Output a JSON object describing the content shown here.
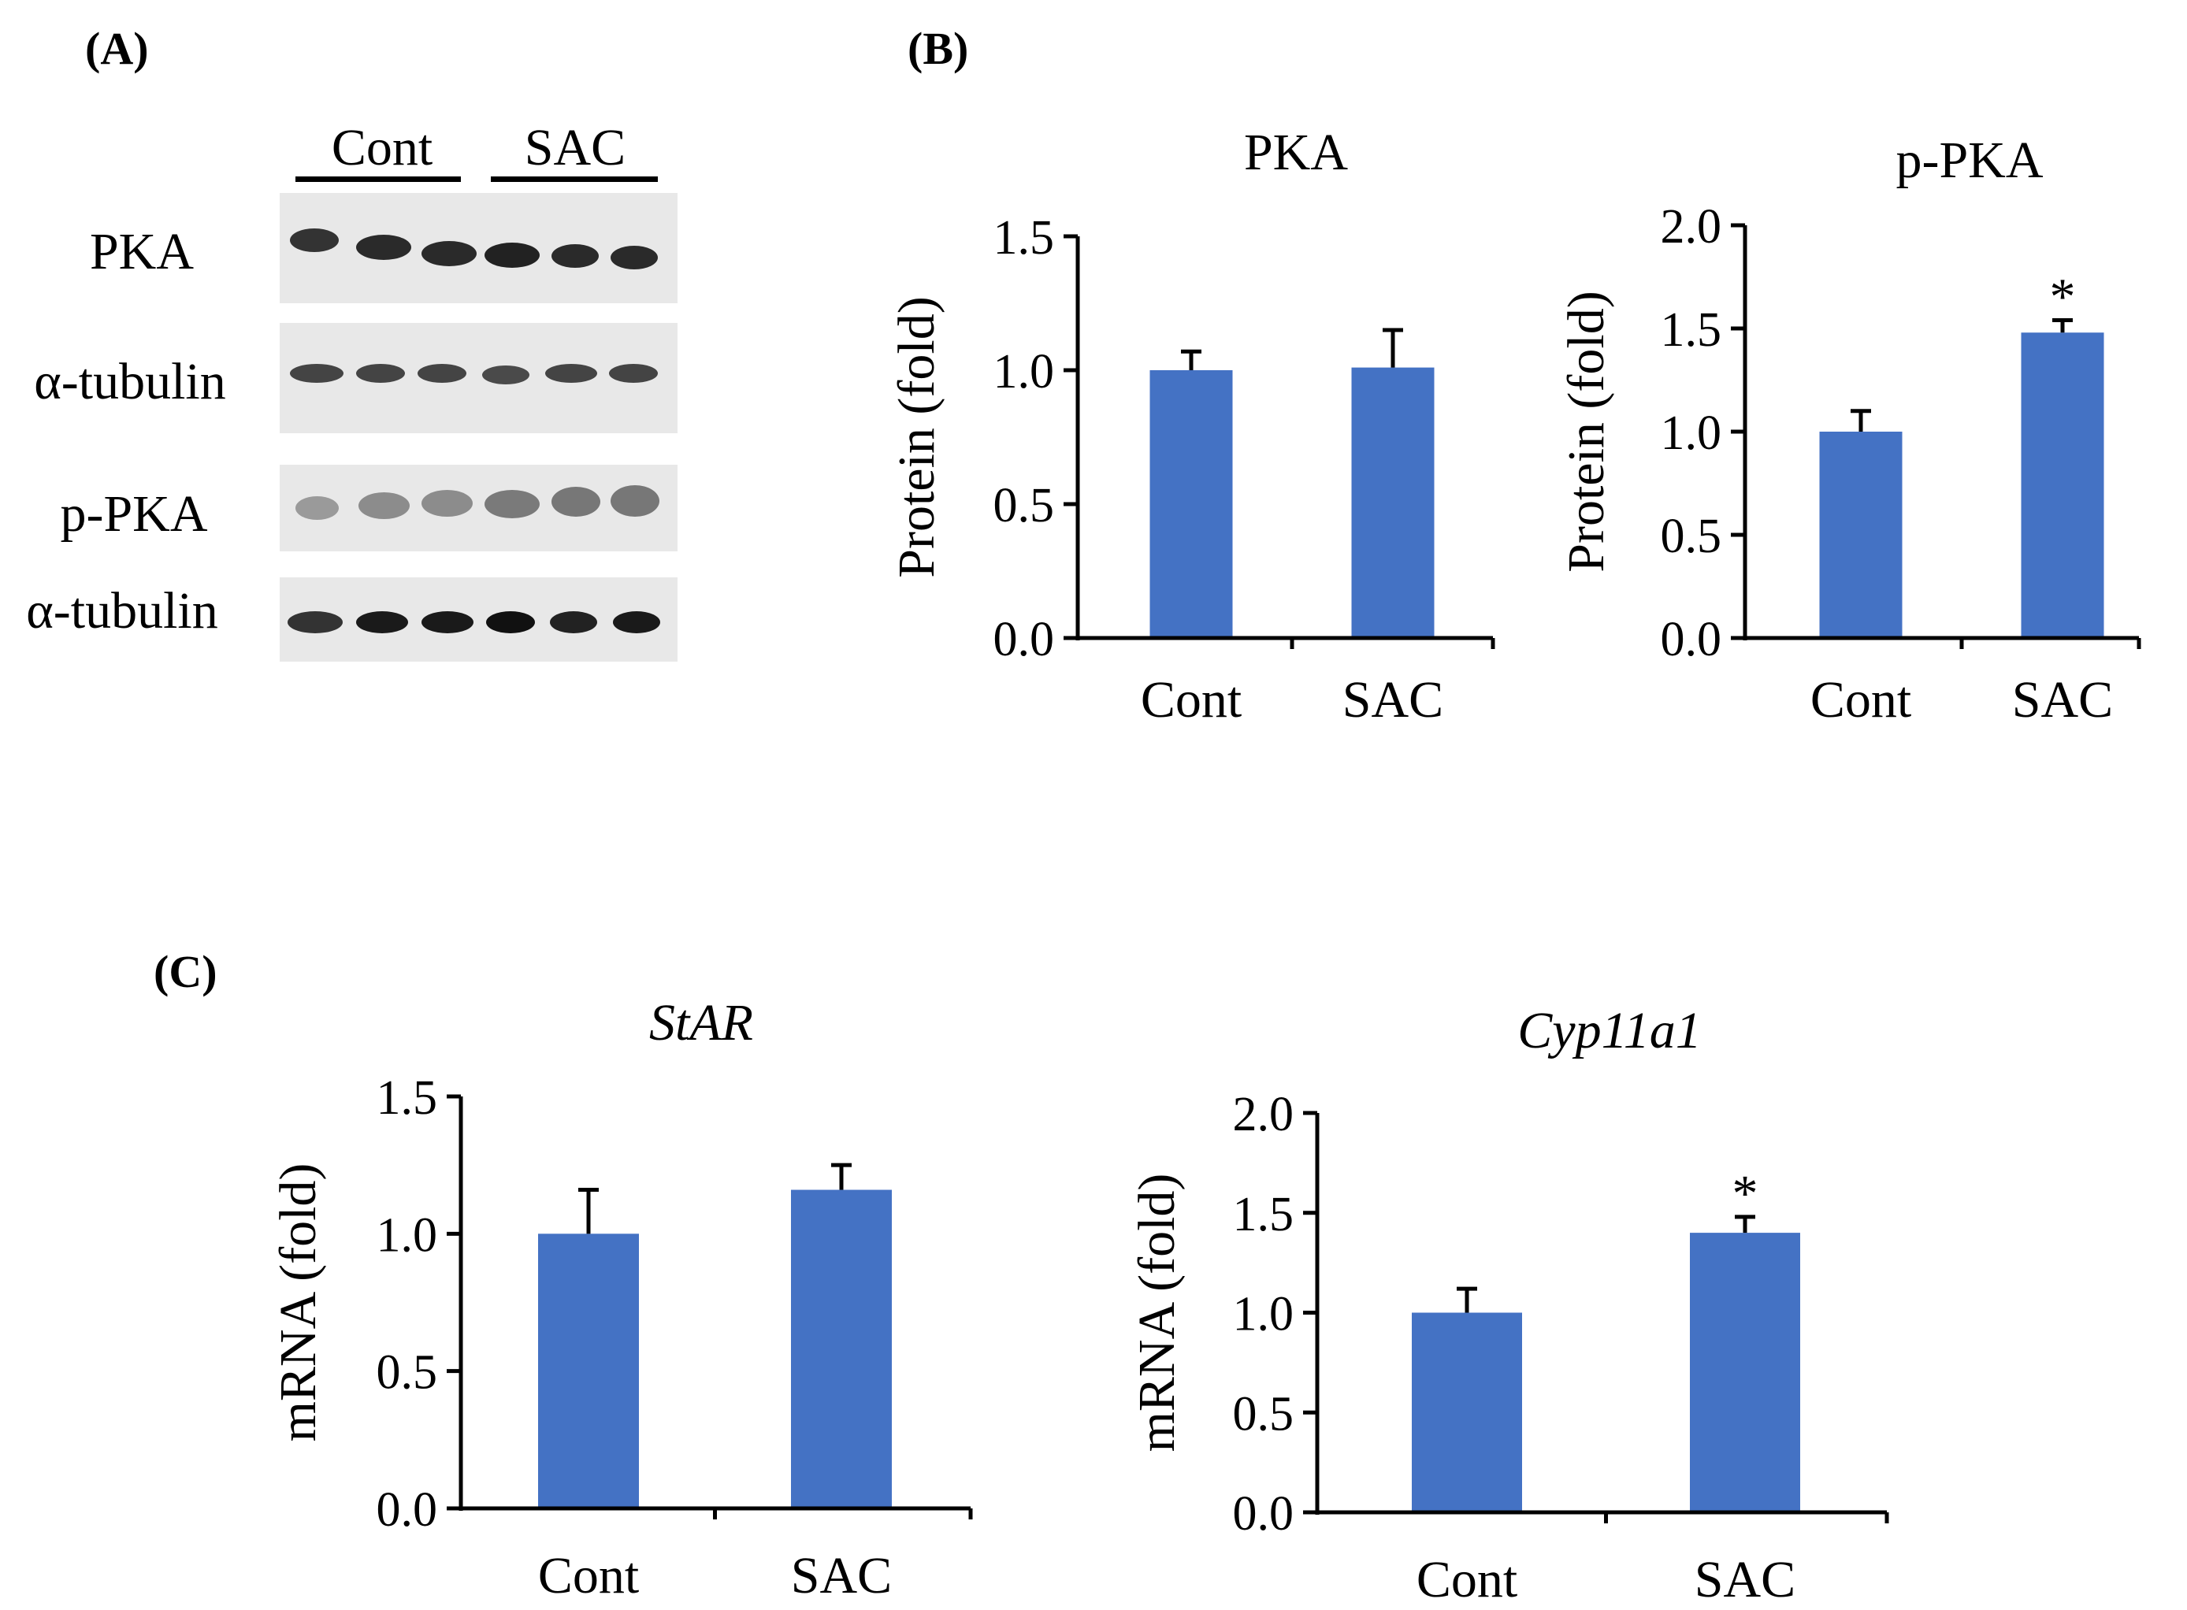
{
  "panels": {
    "a": "(A)",
    "b": "(B)",
    "c": "(C)"
  },
  "blot": {
    "groups": [
      "Cont",
      "SAC"
    ],
    "rows": [
      "PKA",
      "α-tubulin",
      "p-PKA",
      "α-tubulin"
    ]
  },
  "colors": {
    "bar": "#4472C4",
    "axis": "#000000",
    "blot_bg": "#e8e8e8"
  },
  "chart_data": [
    {
      "type": "bar",
      "title": "PKA",
      "title_italic": false,
      "categories": [
        "Cont",
        "SAC"
      ],
      "values": [
        1.0,
        1.01
      ],
      "errors": [
        0.07,
        0.14
      ],
      "ylabel": "Protein (fold)",
      "ylim": [
        0,
        1.5
      ],
      "yticks": [
        "0.0",
        "0.5",
        "1.0",
        "1.5"
      ],
      "significance": [
        "",
        ""
      ]
    },
    {
      "type": "bar",
      "title": "p-PKA",
      "title_italic": false,
      "categories": [
        "Cont",
        "SAC"
      ],
      "values": [
        1.0,
        1.48
      ],
      "errors": [
        0.1,
        0.06
      ],
      "ylabel": "Protein (fold)",
      "ylim": [
        0,
        2.0
      ],
      "yticks": [
        "0.0",
        "0.5",
        "1.0",
        "1.5",
        "2.0"
      ],
      "significance": [
        "",
        "*"
      ]
    },
    {
      "type": "bar",
      "title": "StAR",
      "title_italic": true,
      "categories": [
        "Cont",
        "SAC"
      ],
      "values": [
        1.0,
        1.16
      ],
      "errors": [
        0.16,
        0.09
      ],
      "ylabel": "mRNA (fold)",
      "ylim": [
        0,
        1.5
      ],
      "yticks": [
        "0.0",
        "0.5",
        "1.0",
        "1.5"
      ],
      "significance": [
        "",
        ""
      ]
    },
    {
      "type": "bar",
      "title": "Cyp11a1",
      "title_italic": true,
      "categories": [
        "Cont",
        "SAC"
      ],
      "values": [
        1.0,
        1.4
      ],
      "errors": [
        0.12,
        0.08
      ],
      "ylabel": "mRNA (fold)",
      "ylim": [
        0,
        2.0
      ],
      "yticks": [
        "0.0",
        "0.5",
        "1.0",
        "1.5",
        "2.0"
      ],
      "significance": [
        "",
        "*"
      ]
    }
  ]
}
